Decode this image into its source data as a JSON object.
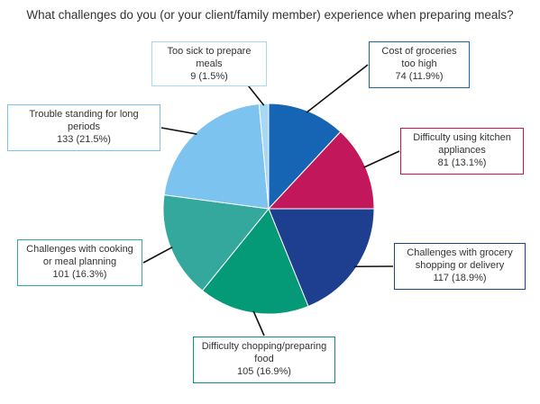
{
  "chart_data": {
    "type": "pie",
    "title": "What challenges do you (or your client/family member) experience when preparing meals?",
    "slices": [
      {
        "label": "Cost of groceries too high",
        "count": 74,
        "value_label": "74 (11.9%)",
        "percent": 11.9,
        "color": "#1565b4"
      },
      {
        "label": "Difficulty using kitchen appliances",
        "count": 81,
        "value_label": "81 (13.1%)",
        "percent": 13.1,
        "color": "#c2185b"
      },
      {
        "label": "Challenges with grocery shopping or delivery",
        "count": 117,
        "value_label": "117 (18.9%)",
        "percent": 18.9,
        "color": "#1e3f8f"
      },
      {
        "label": "Difficulty chopping/preparing food",
        "count": 105,
        "value_label": "105 (16.9%)",
        "percent": 16.9,
        "color": "#049a78"
      },
      {
        "label": "Challenges with cooking or meal planning",
        "count": 101,
        "value_label": "101 (16.3%)",
        "percent": 16.3,
        "color": "#35a89e"
      },
      {
        "label": "Trouble standing for long periods",
        "count": 133,
        "value_label": "133 (21.5%)",
        "percent": 21.5,
        "color": "#7cc3f0"
      },
      {
        "label": "Too sick to prepare meals",
        "count": 9,
        "value_label": "9 (1.5%)",
        "percent": 1.5,
        "color": "#a9d8f7"
      }
    ]
  }
}
